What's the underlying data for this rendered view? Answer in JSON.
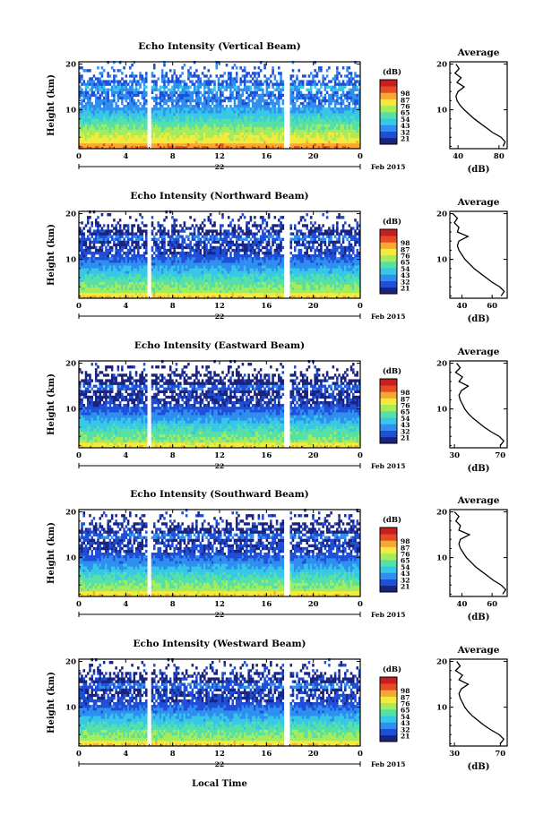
{
  "figure": {
    "xlabel": "Local Time",
    "date_day": "22",
    "date_month_year": "Feb 2015"
  },
  "colorbar": {
    "unit": "(dB)",
    "levels": [
      "21",
      "32",
      "43",
      "54",
      "65",
      "76",
      "87",
      "98"
    ],
    "colors": [
      "#1a237e",
      "#1e4fd8",
      "#2f8ff0",
      "#36c8e6",
      "#55e0a8",
      "#a6ec5a",
      "#f4ea3c",
      "#f7a832",
      "#e84a25",
      "#c81e1e"
    ]
  },
  "chart_data": [
    {
      "type": "heatmap",
      "title": "Echo Intensity (Vertical Beam)",
      "ylabel": "Height (km)",
      "xlim": [
        0,
        24
      ],
      "ylim": [
        1.5,
        20.5
      ],
      "x_ticks": [
        "0",
        "4",
        "8",
        "12",
        "16",
        "20",
        "0"
      ],
      "y_ticks": [
        "10",
        "20"
      ],
      "gaps_hours": [
        [
          5.85,
          6.25
        ],
        [
          17.55,
          17.95
        ]
      ],
      "unit": "(dB)",
      "colorbar_levels": [
        "21",
        "32",
        "43",
        "54",
        "65",
        "76",
        "87",
        "98"
      ],
      "profile": {
        "title": "Average",
        "xlabel": "(dB)",
        "xlim": [
          32,
          88
        ],
        "x_ticks": [
          "40",
          "80"
        ],
        "y_ticks": [
          "10",
          "20"
        ],
        "heights_km": [
          2,
          3,
          4,
          5,
          6,
          7,
          8,
          9,
          10,
          11,
          12,
          13,
          14,
          15,
          16,
          17,
          18,
          19,
          20
        ],
        "values_db": [
          84,
          86,
          82,
          74,
          68,
          62,
          56,
          51,
          46,
          42,
          39,
          38,
          40,
          46,
          39,
          43,
          37,
          41,
          38
        ]
      }
    },
    {
      "type": "heatmap",
      "title": "Echo Intensity (Northward Beam)",
      "ylabel": "Height (km)",
      "xlim": [
        0,
        24
      ],
      "ylim": [
        1.5,
        20.5
      ],
      "x_ticks": [
        "0",
        "4",
        "8",
        "12",
        "16",
        "20",
        "0"
      ],
      "y_ticks": [
        "10",
        "20"
      ],
      "gaps_hours": [
        [
          5.85,
          6.25
        ],
        [
          17.55,
          17.95
        ]
      ],
      "unit": "(dB)",
      "colorbar_levels": [
        "21",
        "32",
        "43",
        "54",
        "65",
        "76",
        "87",
        "98"
      ],
      "profile": {
        "title": "Average",
        "xlabel": "(dB)",
        "xlim": [
          32,
          70
        ],
        "x_ticks": [
          "40",
          "60"
        ],
        "y_ticks": [
          "10",
          "20"
        ],
        "heights_km": [
          2,
          3,
          4,
          5,
          6,
          7,
          8,
          9,
          10,
          11,
          12,
          13,
          14,
          15,
          16,
          17,
          18,
          19,
          20
        ],
        "values_db": [
          66,
          68,
          65,
          60,
          56,
          52,
          48,
          45,
          42,
          40,
          38,
          37,
          38,
          44,
          37,
          38,
          35,
          37,
          34
        ]
      }
    },
    {
      "type": "heatmap",
      "title": "Echo Intensity (Eastward Beam)",
      "ylabel": "Height (km)",
      "xlim": [
        0,
        24
      ],
      "ylim": [
        1.5,
        20.5
      ],
      "x_ticks": [
        "0",
        "4",
        "8",
        "12",
        "16",
        "20",
        "0"
      ],
      "y_ticks": [
        "10",
        "20"
      ],
      "gaps_hours": [
        [
          5.85,
          6.25
        ],
        [
          17.55,
          17.95
        ]
      ],
      "unit": "(dB)",
      "colorbar_levels": [
        "21",
        "32",
        "43",
        "54",
        "65",
        "76",
        "87",
        "98"
      ],
      "profile": {
        "title": "Average",
        "xlabel": "(dB)",
        "xlim": [
          26,
          76
        ],
        "x_ticks": [
          "30",
          "70"
        ],
        "y_ticks": [
          "10",
          "20"
        ],
        "heights_km": [
          2,
          3,
          4,
          5,
          6,
          7,
          8,
          9,
          10,
          11,
          12,
          13,
          14,
          15,
          16,
          17,
          18,
          19,
          20
        ],
        "values_db": [
          70,
          73,
          69,
          62,
          56,
          51,
          46,
          42,
          39,
          37,
          35,
          34,
          36,
          42,
          34,
          37,
          31,
          35,
          32
        ]
      }
    },
    {
      "type": "heatmap",
      "title": "Echo Intensity (Southward Beam)",
      "ylabel": "Height (km)",
      "xlim": [
        0,
        24
      ],
      "ylim": [
        1.5,
        20.5
      ],
      "x_ticks": [
        "0",
        "4",
        "8",
        "12",
        "16",
        "20",
        "0"
      ],
      "y_ticks": [
        "10",
        "20"
      ],
      "gaps_hours": [
        [
          5.85,
          6.25
        ],
        [
          17.55,
          17.95
        ]
      ],
      "unit": "(dB)",
      "colorbar_levels": [
        "21",
        "32",
        "43",
        "54",
        "65",
        "76",
        "87",
        "98"
      ],
      "profile": {
        "title": "Average",
        "xlabel": "(dB)",
        "xlim": [
          32,
          70
        ],
        "x_ticks": [
          "40",
          "60"
        ],
        "y_ticks": [
          "10",
          "20"
        ],
        "heights_km": [
          2,
          3,
          4,
          5,
          6,
          7,
          8,
          9,
          10,
          11,
          12,
          13,
          14,
          15,
          16,
          17,
          18,
          19,
          20
        ],
        "values_db": [
          67,
          69,
          66,
          61,
          57,
          53,
          49,
          46,
          43,
          41,
          39,
          38,
          39,
          45,
          38,
          39,
          36,
          38,
          35
        ]
      }
    },
    {
      "type": "heatmap",
      "title": "Echo Intensity (Westward Beam)",
      "ylabel": "Height (km)",
      "xlim": [
        0,
        24
      ],
      "ylim": [
        1.5,
        20.5
      ],
      "x_ticks": [
        "0",
        "4",
        "8",
        "12",
        "16",
        "20",
        "0"
      ],
      "y_ticks": [
        "10",
        "20"
      ],
      "gaps_hours": [
        [
          5.85,
          6.25
        ],
        [
          17.55,
          17.95
        ]
      ],
      "unit": "(dB)",
      "colorbar_levels": [
        "21",
        "32",
        "43",
        "54",
        "65",
        "76",
        "87",
        "98"
      ],
      "profile": {
        "title": "Average",
        "xlabel": "(dB)",
        "xlim": [
          26,
          76
        ],
        "x_ticks": [
          "30",
          "70"
        ],
        "y_ticks": [
          "10",
          "20"
        ],
        "heights_km": [
          2,
          3,
          4,
          5,
          6,
          7,
          8,
          9,
          10,
          11,
          12,
          13,
          14,
          15,
          16,
          17,
          18,
          19,
          20
        ],
        "values_db": [
          70,
          73,
          69,
          62,
          56,
          51,
          46,
          42,
          39,
          37,
          35,
          34,
          36,
          42,
          34,
          37,
          31,
          35,
          32
        ]
      }
    }
  ]
}
